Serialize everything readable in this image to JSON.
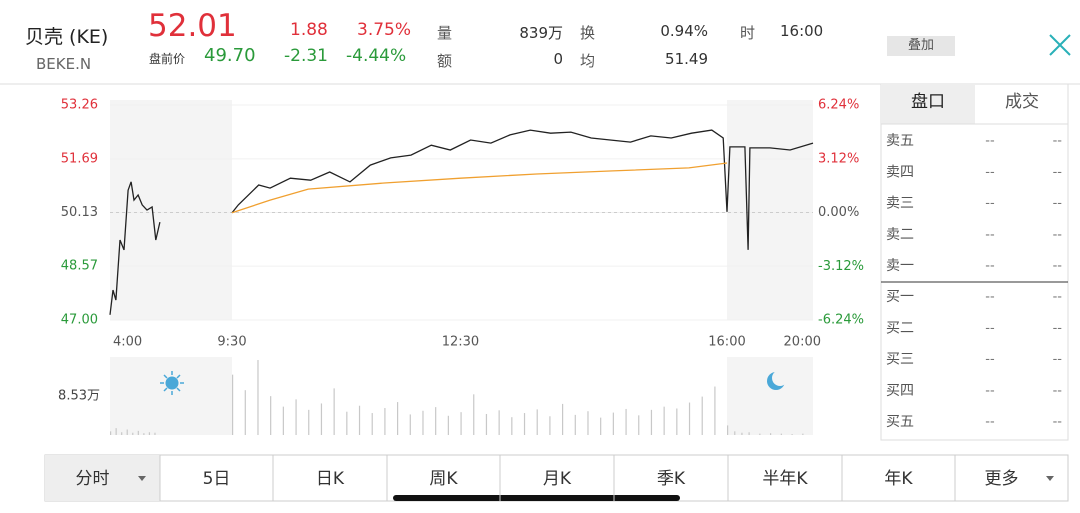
{
  "header": {
    "name": "贝壳 (KE)",
    "code": "BEKE.N",
    "price": "52.01",
    "change": "1.88",
    "change_pct": "3.75%",
    "premarket_label": "盘前价",
    "premarket_price": "49.70",
    "premarket_change": "-2.31",
    "premarket_change_pct": "-4.44%",
    "stats": [
      {
        "label": "量",
        "value": "839万"
      },
      {
        "label": "额",
        "value": "0"
      },
      {
        "label": "换",
        "value": "0.94%"
      },
      {
        "label": "均",
        "value": "51.49"
      },
      {
        "label": "时",
        "value": "16:00"
      }
    ]
  },
  "overlay_button": "叠加",
  "order_book": {
    "tabs": [
      "盘口",
      "成交"
    ],
    "asks": [
      {
        "label": "卖五",
        "price": "--",
        "volume": "--"
      },
      {
        "label": "卖四",
        "price": "--",
        "volume": "--"
      },
      {
        "label": "卖三",
        "price": "--",
        "volume": "--"
      },
      {
        "label": "卖二",
        "price": "--",
        "volume": "--"
      },
      {
        "label": "卖一",
        "price": "--",
        "volume": "--"
      }
    ],
    "bids": [
      {
        "label": "买一",
        "price": "--",
        "volume": "--"
      },
      {
        "label": "买二",
        "price": "--",
        "volume": "--"
      },
      {
        "label": "买三",
        "price": "--",
        "volume": "--"
      },
      {
        "label": "买四",
        "price": "--",
        "volume": "--"
      },
      {
        "label": "买五",
        "price": "--",
        "volume": "--"
      }
    ]
  },
  "bottom_tabs": [
    "分时",
    "5日",
    "日K",
    "周K",
    "月K",
    "季K",
    "半年K",
    "年K",
    "更多"
  ],
  "chart_data": [
    {
      "type": "line",
      "xlim": [
        "4:00",
        "20:00"
      ],
      "xticks": [
        "4:00",
        "9:30",
        "12:30",
        "16:00",
        "20:00"
      ],
      "ylim": [
        47,
        53.26
      ],
      "yticks": [
        {
          "value": 47,
          "label": "47.00"
        },
        48.57,
        50.13,
        51.69,
        53.26
      ],
      "y2lim": [
        -6.24,
        6.24
      ],
      "y2ticks": [
        {
          "value": -6.24,
          "label": "-6.24%"
        },
        {
          "value": -3.12,
          "label": "-3.12%"
        },
        {
          "value": 0,
          "label": "0.00%"
        },
        {
          "value": 3.12,
          "label": "3.12%"
        },
        {
          "value": 6.24,
          "label": "6.24%"
        }
      ],
      "grid": true,
      "series": [
        {
          "color": "#222222",
          "x": [
            "4:00",
            "4:08",
            "4:16",
            "4:27",
            "4:38",
            "4:49",
            "4:57",
            "5:05",
            "5:16",
            "5:27",
            "5:40",
            "5:54",
            "6:04",
            "6:15",
            "7:00",
            "9:30",
            "9:35",
            "9:51",
            "10:00",
            "10:16",
            "10:32",
            "10:47",
            "11:03",
            "11:19",
            "11:35",
            "11:51",
            "12:07",
            "12:22",
            "12:38",
            "12:54",
            "13:09",
            "13:25",
            "13:41",
            "13:57",
            "14:13",
            "14:28",
            "14:44",
            "15:00",
            "15:16",
            "15:32",
            "15:48",
            "15:57",
            "16:00",
            "16:08",
            "16:25",
            "16:50",
            "16:59",
            "17:04",
            "18:00",
            "18:56",
            "20:00"
          ],
          "values": [
            47.15,
            47.87,
            47.58,
            49.33,
            49.04,
            50.78,
            51.02,
            50.49,
            50.64,
            50.35,
            50.2,
            50.29,
            49.33,
            49.85,
            null,
            50.12,
            50.35,
            50.93,
            50.84,
            51.13,
            51.07,
            51.31,
            51.02,
            51.51,
            51.72,
            51.8,
            52.09,
            51.95,
            52.24,
            52.15,
            52.39,
            52.53,
            52.44,
            52.47,
            52.3,
            52.24,
            52.18,
            52.36,
            52.3,
            52.44,
            52.53,
            52.3,
            50.15,
            52.04,
            52.04,
            52.04,
            49.04,
            52.01,
            52.01,
            51.95,
            52.15
          ]
        },
        {
          "color": "#f0a030",
          "x": [
            "9:30",
            "10:00",
            "10:30",
            "11:30",
            "12:30",
            "13:30",
            "14:30",
            "15:30",
            "16:00"
          ],
          "values": [
            50.12,
            50.49,
            50.81,
            50.99,
            51.13,
            51.25,
            51.34,
            51.43,
            51.57
          ]
        }
      ]
    },
    {
      "type": "bar",
      "xlim": [
        "4:00",
        "20:00"
      ],
      "ylim": [
        0,
        17.06
      ],
      "yticks": [
        {
          "value": 8.53,
          "label": "8.53万"
        }
      ],
      "color": "#c8c8c8",
      "x": [
        "4:00",
        "4:15",
        "4:30",
        "4:45",
        "5:00",
        "5:15",
        "5:30",
        "5:45",
        "6:00",
        "9:30",
        "9:40",
        "9:50",
        "10:00",
        "10:10",
        "10:20",
        "10:30",
        "10:40",
        "10:50",
        "11:00",
        "11:10",
        "11:20",
        "11:30",
        "11:40",
        "11:50",
        "12:00",
        "12:10",
        "12:20",
        "12:30",
        "12:40",
        "12:50",
        "13:00",
        "13:10",
        "13:20",
        "13:30",
        "13:40",
        "13:50",
        "14:00",
        "14:10",
        "14:20",
        "14:30",
        "14:40",
        "14:50",
        "15:00",
        "15:10",
        "15:20",
        "15:30",
        "15:40",
        "15:50",
        "16:00",
        "16:20",
        "16:40",
        "17:00",
        "17:30",
        "18:00",
        "18:30",
        "19:00",
        "19:30"
      ],
      "values": [
        0.8,
        1.5,
        0.6,
        1.2,
        0.5,
        0.9,
        0.4,
        0.6,
        0.5,
        13.2,
        9.8,
        16.4,
        8.5,
        6.2,
        7.8,
        5.5,
        6.9,
        10.2,
        5.1,
        6.4,
        4.8,
        5.9,
        7.2,
        4.5,
        5.3,
        6.1,
        4.2,
        5.0,
        8.9,
        4.6,
        5.4,
        3.9,
        4.8,
        5.6,
        4.1,
        6.8,
        4.4,
        5.2,
        3.8,
        4.9,
        5.7,
        4.3,
        5.5,
        6.2,
        5.8,
        7.1,
        8.4,
        10.6,
        2.1,
        0.8,
        0.5,
        0.6,
        0.3,
        0.4,
        0.3,
        0.2,
        0.3
      ]
    }
  ]
}
